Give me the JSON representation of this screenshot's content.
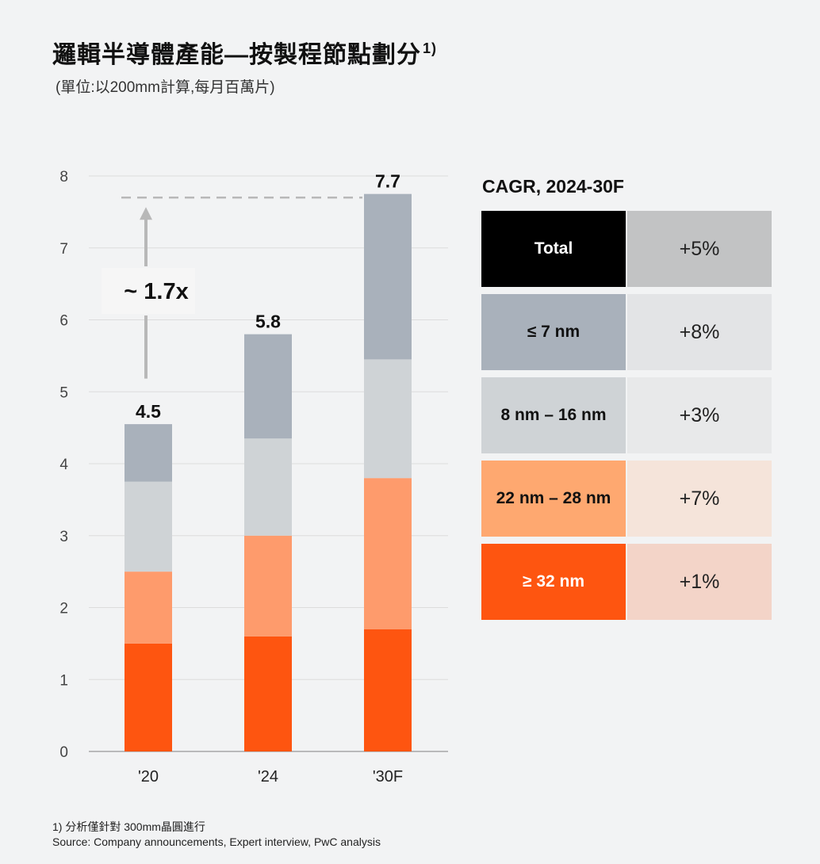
{
  "header": {
    "title": "邏輯半導體產能—按製程節點劃分",
    "title_sup": "1)",
    "subtitle": "(單位:以200mm計算,每月百萬片)"
  },
  "chart_data": {
    "type": "bar",
    "stacked": true,
    "categories": [
      "'20",
      "'24",
      "'30F"
    ],
    "series": [
      {
        "name": "≥ 32 nm",
        "color": "#fe5510",
        "values": [
          1.5,
          1.6,
          1.7
        ]
      },
      {
        "name": "22 nm – 28 nm",
        "color": "#fe9b6c",
        "values": [
          1.0,
          1.4,
          2.1
        ]
      },
      {
        "name": "8 nm – 16 nm",
        "color": "#cfd3d6",
        "values": [
          1.25,
          1.35,
          1.65
        ]
      },
      {
        "name": "≤ 7 nm",
        "color": "#a9b1bb",
        "values": [
          0.8,
          1.45,
          2.3
        ]
      }
    ],
    "totals": [
      "4.5",
      "5.8",
      "7.7"
    ],
    "ylim": [
      0,
      8
    ],
    "yticks": [
      "0",
      "1",
      "2",
      "3",
      "4",
      "5",
      "6",
      "7",
      "8"
    ],
    "grid": true,
    "annotation": {
      "label": "~ 1.7x",
      "from_value": 4.5,
      "to_value": 7.7
    }
  },
  "cagr": {
    "title": "CAGR, 2024-30F",
    "rows": [
      {
        "label": "Total",
        "value": "+5%",
        "label_bg": "#000000",
        "label_color": "#ffffff",
        "value_bg": "#c2c3c4"
      },
      {
        "label": "≤ 7 nm",
        "value": "+8%",
        "label_bg": "#a9b1bb",
        "label_color": "#111111",
        "value_bg": "#e3e4e6"
      },
      {
        "label": "8 nm –  16 nm",
        "value": "+3%",
        "label_bg": "#cfd3d6",
        "label_color": "#111111",
        "value_bg": "#e8e9ea"
      },
      {
        "label": "22 nm – 28 nm",
        "value": "+7%",
        "label_bg": "#fea870",
        "label_color": "#111111",
        "value_bg": "#f5e4da"
      },
      {
        "label": "≥ 32 nm",
        "value": "+1%",
        "label_bg": "#fe5510",
        "label_color": "#ffffff",
        "value_bg": "#f3d4c8"
      }
    ]
  },
  "footer": {
    "footnote": "1) 分析僅針對 300mm晶圓進行",
    "source": "Source: Company announcements, Expert interview, PwC analysis"
  }
}
